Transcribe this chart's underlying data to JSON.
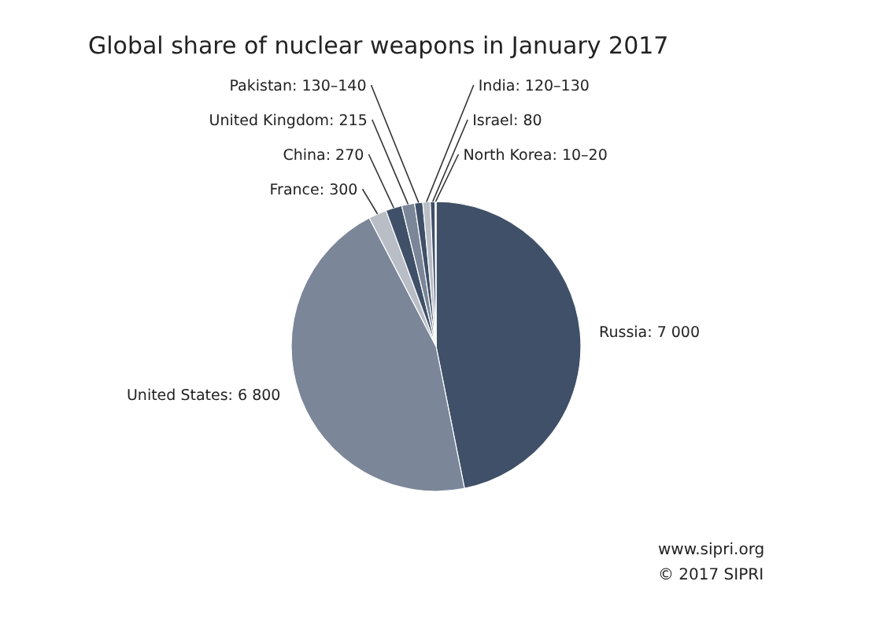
{
  "chart_data": {
    "type": "pie",
    "title": "Global share of nuclear weapons in January 2017",
    "categories": [
      "Russia",
      "United States",
      "France",
      "China",
      "United Kingdom",
      "Pakistan",
      "India",
      "Israel",
      "North Korea"
    ],
    "values": [
      7000,
      6800,
      300,
      270,
      215,
      135,
      125,
      80,
      15
    ],
    "value_labels": [
      "7 000",
      "6 800",
      "300",
      "270",
      "215",
      "130–140",
      "120–130",
      "80",
      "10–20"
    ],
    "colors": [
      "#3f5068",
      "#7b8699",
      "#b9bdc6",
      "#3f5068",
      "#7b8699",
      "#3f5068",
      "#b9bdc6",
      "#3f5068",
      "#7b8699"
    ],
    "annotations": [
      "www.sipri.org",
      "© 2017 SIPRI"
    ],
    "legend": false
  }
}
